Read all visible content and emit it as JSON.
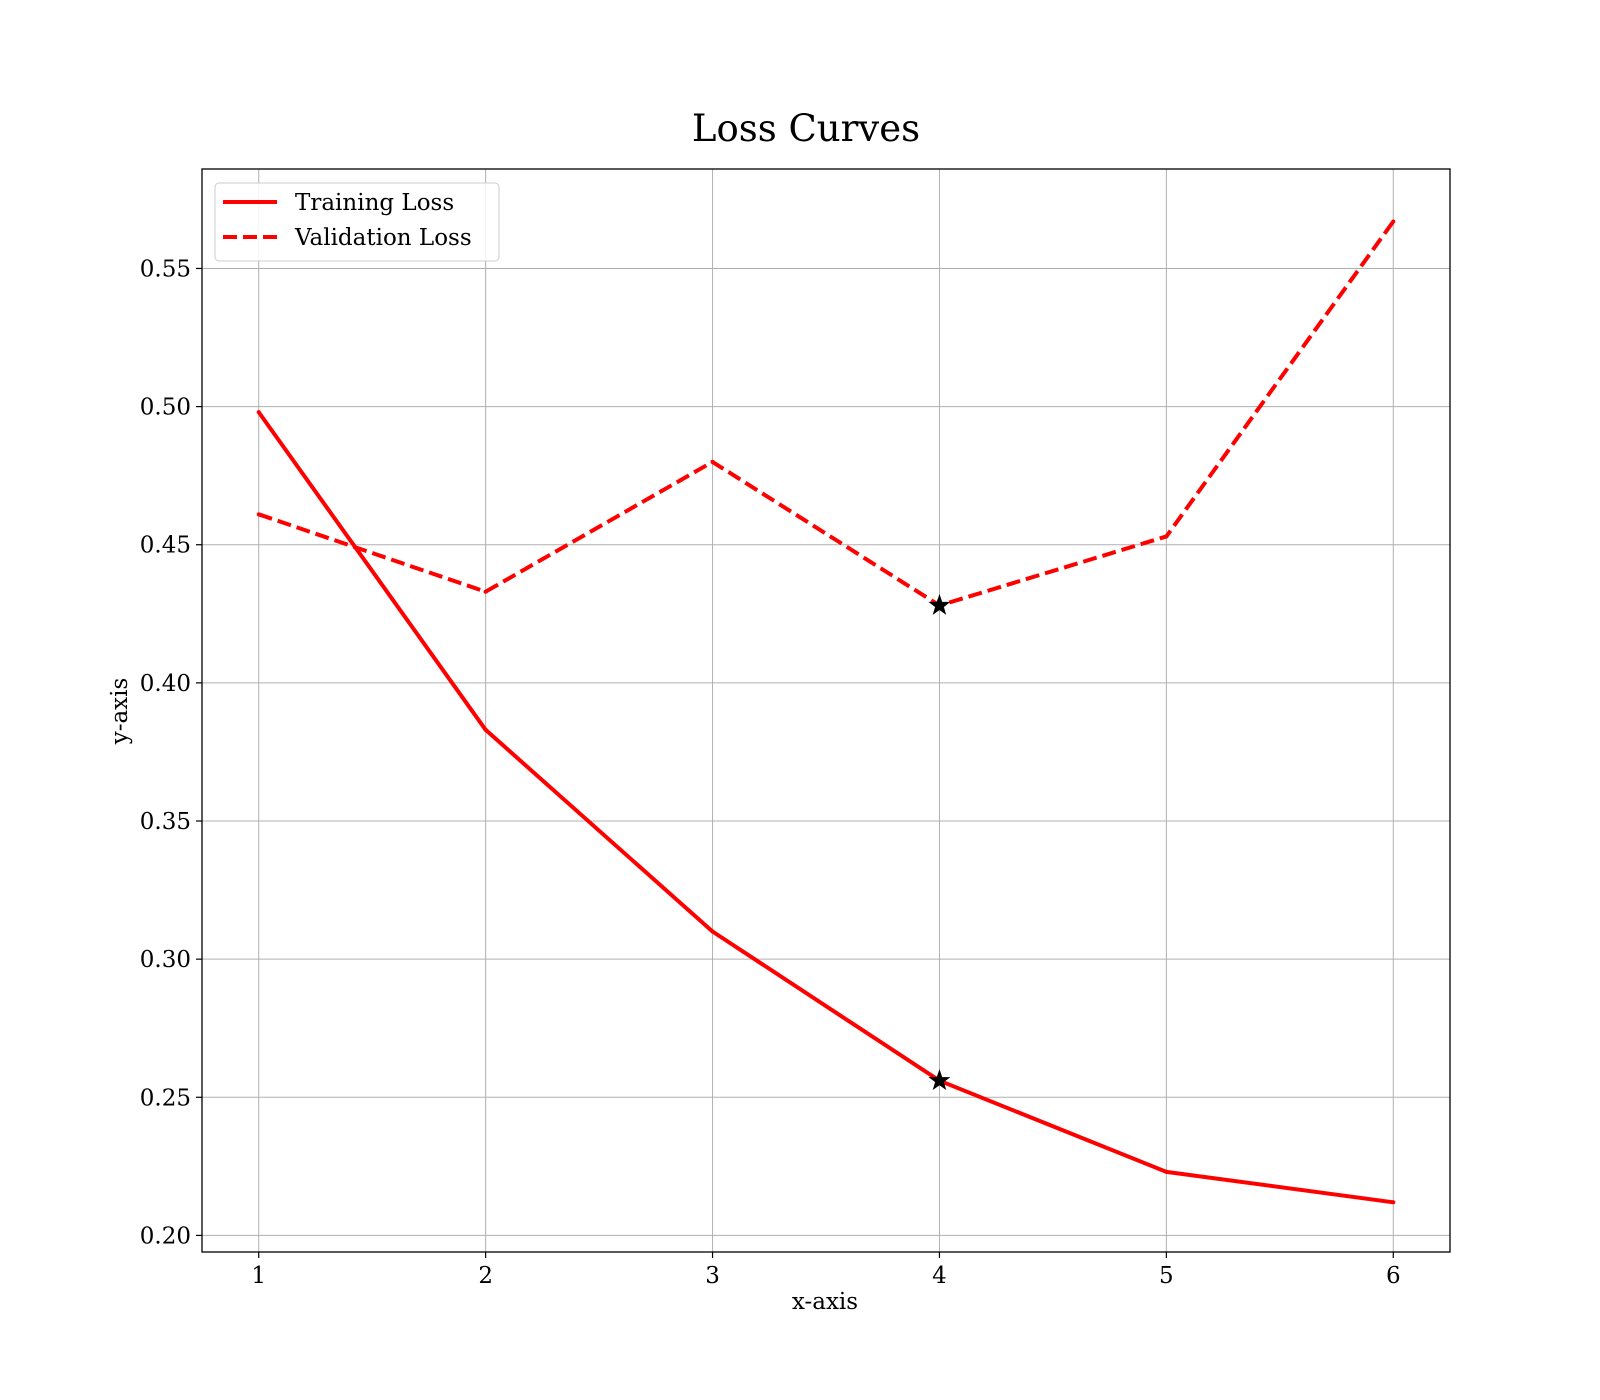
{
  "chart_data": {
    "type": "line",
    "title": "Loss Curves",
    "xlabel": "x-axis",
    "ylabel": "y-axis",
    "x": [
      1,
      2,
      3,
      4,
      5,
      6
    ],
    "xticks": [
      "1",
      "2",
      "3",
      "4",
      "5",
      "6"
    ],
    "yticks": [
      "0.20",
      "0.25",
      "0.30",
      "0.35",
      "0.40",
      "0.45",
      "0.50",
      "0.55"
    ],
    "xlim": [
      0.75,
      6.25
    ],
    "ylim": [
      0.194,
      0.586
    ],
    "grid": true,
    "legend_position": "top-left",
    "series": [
      {
        "name": "Training Loss",
        "values": [
          0.498,
          0.383,
          0.31,
          0.256,
          0.223,
          0.212
        ],
        "color": "#ff0000",
        "line_style": "solid"
      },
      {
        "name": "Validation Loss",
        "values": [
          0.461,
          0.433,
          0.48,
          0.428,
          0.453,
          0.567
        ],
        "color": "#ff0000",
        "line_style": "dashed"
      }
    ],
    "markers": [
      {
        "series": "Training Loss",
        "x": 4,
        "y": 0.256,
        "shape": "star",
        "color": "#000000"
      },
      {
        "series": "Validation Loss",
        "x": 4,
        "y": 0.428,
        "shape": "star",
        "color": "#000000"
      }
    ]
  }
}
